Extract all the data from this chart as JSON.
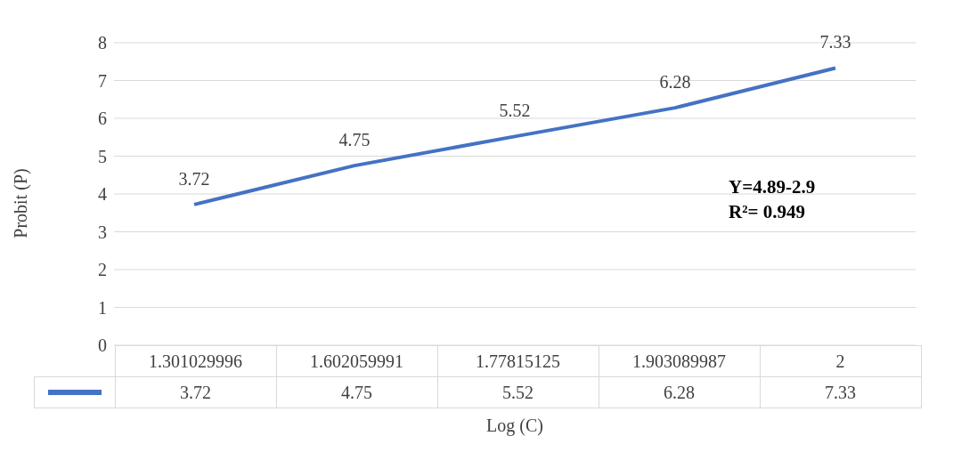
{
  "chart_data": {
    "type": "line",
    "xlabel": "Log (C)",
    "ylabel": "Probit (P)",
    "categories": [
      "1.301029996",
      "1.602059991",
      "1.77815125",
      "1.903089987",
      "2"
    ],
    "values": [
      3.72,
      4.75,
      5.52,
      6.28,
      7.33
    ],
    "color": "#4472c4",
    "ylim": [
      0,
      8
    ],
    "yticks": [
      0,
      1,
      2,
      3,
      4,
      5,
      6,
      7,
      8
    ],
    "grid": "y",
    "data_labels": true,
    "marker": "none",
    "line_style": "solid",
    "annotations": [
      {
        "text": "3.72",
        "x": "1.301029996",
        "y": 3.72
      },
      {
        "text": "4.75",
        "x": "1.602059991",
        "y": 4.75
      },
      {
        "text": "5.52",
        "x": "1.77815125",
        "y": 5.52
      },
      {
        "text": "6.28",
        "x": "1.903089987",
        "y": 6.28
      },
      {
        "text": "7.33",
        "x": "2",
        "y": 7.33
      },
      "Y=4.89-2.9",
      "R²= 0.949"
    ]
  }
}
